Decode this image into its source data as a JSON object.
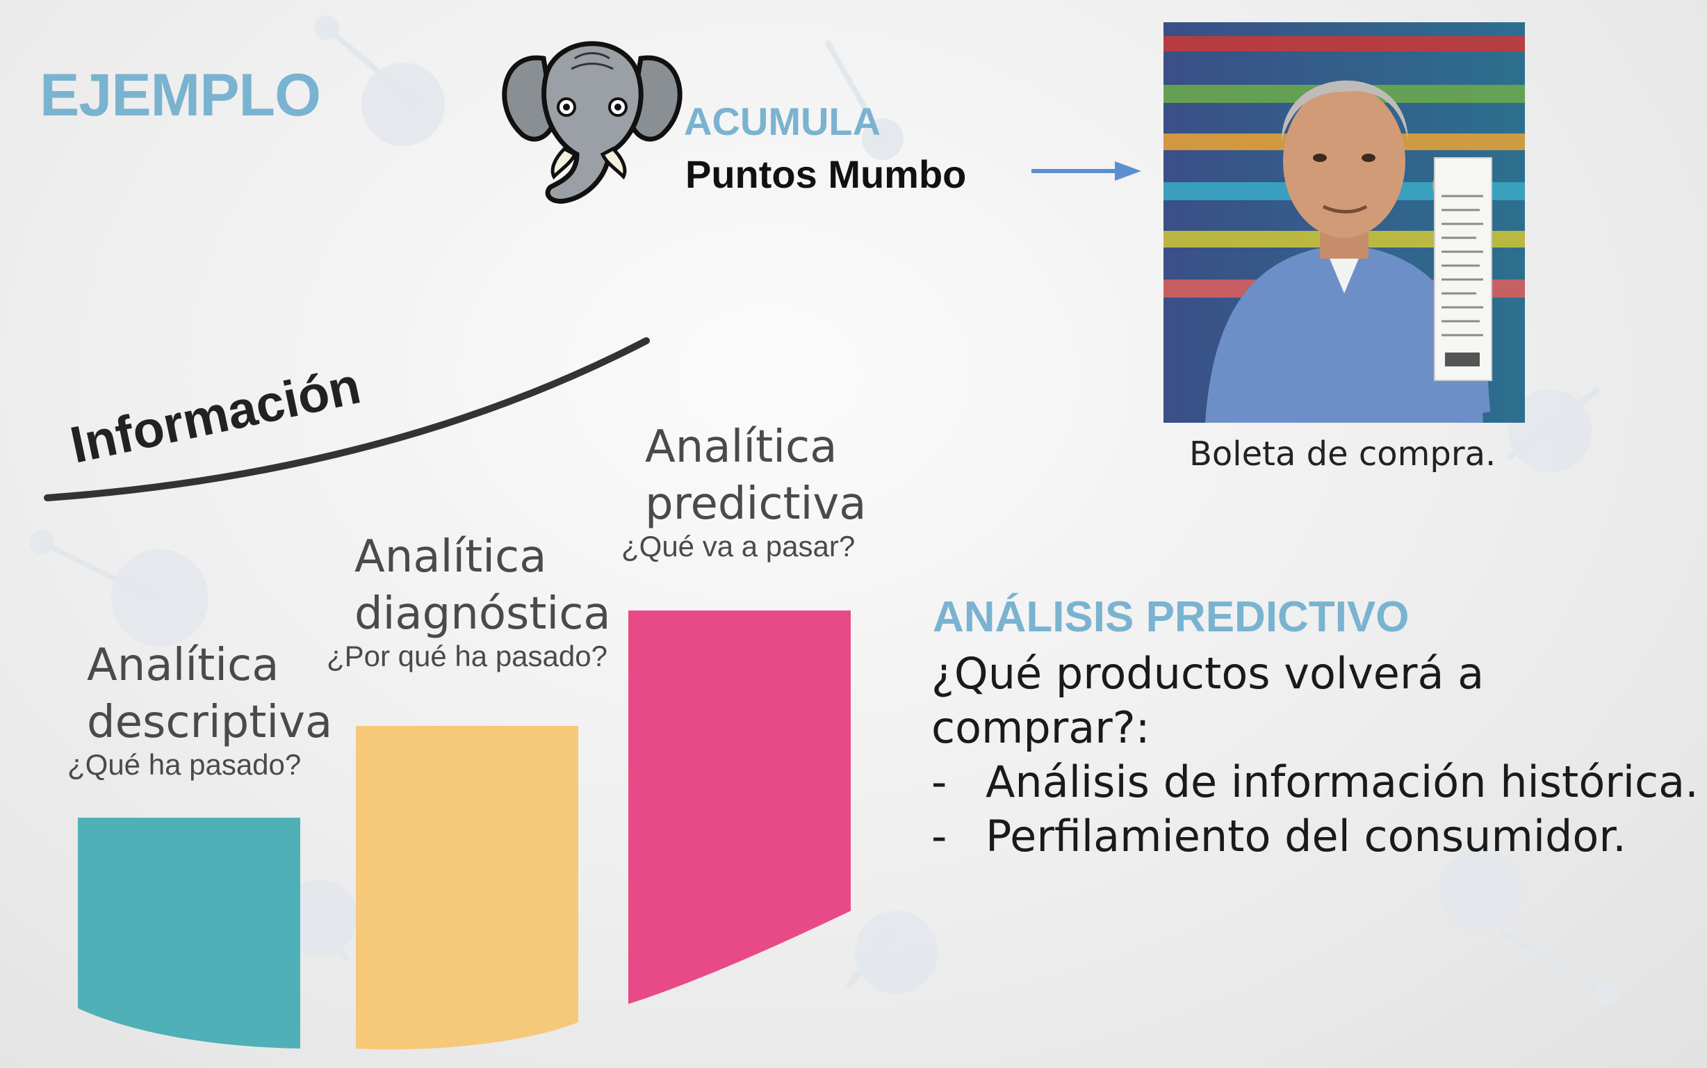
{
  "slide": {
    "title": "EJEMPLO",
    "header_line1": "ACUMULA",
    "header_line2": "Puntos Mumbo",
    "photo_caption": "Boleta de compra.",
    "curve_label": "Información"
  },
  "stages": [
    {
      "title_line1": "Analítica",
      "title_line2": "descriptiva",
      "question": "¿Qué ha pasado?",
      "color": "#4fb0b7"
    },
    {
      "title_line1": "Analítica",
      "title_line2": "diagnóstica",
      "question": "¿Por qué ha pasado?",
      "color": "#f6c87a"
    },
    {
      "title_line1": "Analítica",
      "title_line2": "predictiva",
      "question": "¿Qué va a pasar?",
      "color": "#e84a87"
    }
  ],
  "analysis": {
    "title": "ANÁLISIS PREDICTIVO",
    "question_line1": "¿Qué productos volverá a",
    "question_line2": "comprar?:",
    "bullets": [
      {
        "marker": "-",
        "text": "Análisis de información histórica."
      },
      {
        "marker": "-",
        "text": "Perfilamiento del consumidor."
      }
    ]
  },
  "colors": {
    "accent_blue": "#7ab3d0",
    "arrow": "#5b8fcf",
    "text_dark": "#1a1a1a"
  },
  "icons": {
    "mascot": "elephant-mascot-icon",
    "arrow": "arrow-right-icon",
    "photo": "man-holding-receipt-photo"
  }
}
